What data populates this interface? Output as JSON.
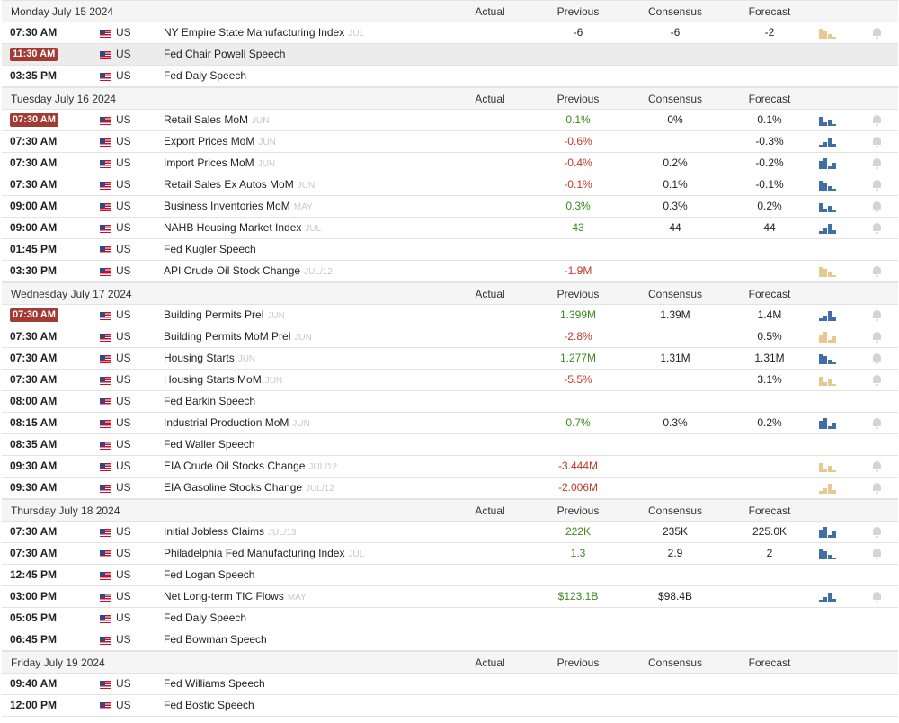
{
  "columns": [
    "Actual",
    "Previous",
    "Consensus",
    "Forecast"
  ],
  "days": [
    {
      "date": "Monday July 15 2024",
      "events": [
        {
          "time": "07:30 AM",
          "country": "US",
          "name": "NY Empire State Manufacturing Index",
          "period": "JUL",
          "previous": "-6",
          "consensus": "-6",
          "forecast": "-2",
          "sparkline": "tan"
        },
        {
          "time": "11:30 AM",
          "highlight": true,
          "shaded": true,
          "country": "US",
          "name": "Fed Chair Powell Speech"
        },
        {
          "time": "03:35 PM",
          "country": "US",
          "name": "Fed Daly Speech"
        }
      ]
    },
    {
      "date": "Tuesday July 16 2024",
      "events": [
        {
          "time": "07:30 AM",
          "highlight": true,
          "country": "US",
          "name": "Retail Sales MoM",
          "period": "JUN",
          "previous": "0.1%",
          "previous_color": "green",
          "consensus": "0%",
          "forecast": "0.1%",
          "sparkline": "blue"
        },
        {
          "time": "07:30 AM",
          "country": "US",
          "name": "Export Prices MoM",
          "period": "JUN",
          "previous": "-0.6%",
          "previous_color": "red",
          "forecast": "-0.3%",
          "sparkline": "blue"
        },
        {
          "time": "07:30 AM",
          "country": "US",
          "name": "Import Prices MoM",
          "period": "JUN",
          "previous": "-0.4%",
          "previous_color": "red",
          "consensus": "0.2%",
          "forecast": "-0.2%",
          "sparkline": "blue"
        },
        {
          "time": "07:30 AM",
          "country": "US",
          "name": "Retail Sales Ex Autos MoM",
          "period": "JUN",
          "previous": "-0.1%",
          "previous_color": "red",
          "consensus": "0.1%",
          "forecast": "-0.1%",
          "sparkline": "blue"
        },
        {
          "time": "09:00 AM",
          "country": "US",
          "name": "Business Inventories MoM",
          "period": "MAY",
          "previous": "0.3%",
          "previous_color": "green",
          "consensus": "0.3%",
          "forecast": "0.2%",
          "sparkline": "blue"
        },
        {
          "time": "09:00 AM",
          "country": "US",
          "name": "NAHB Housing Market Index",
          "period": "JUL",
          "previous": "43",
          "previous_color": "green",
          "consensus": "44",
          "forecast": "44",
          "sparkline": "blue"
        },
        {
          "time": "01:45 PM",
          "country": "US",
          "name": "Fed Kugler Speech"
        },
        {
          "time": "03:30 PM",
          "country": "US",
          "name": "API Crude Oil Stock Change",
          "period": "JUL/12",
          "previous": "-1.9M",
          "previous_color": "red",
          "sparkline": "tan"
        }
      ]
    },
    {
      "date": "Wednesday July 17 2024",
      "events": [
        {
          "time": "07:30 AM",
          "highlight": true,
          "country": "US",
          "name": "Building Permits Prel",
          "period": "JUN",
          "previous": "1.399M",
          "previous_color": "green",
          "consensus": "1.39M",
          "forecast": "1.4M",
          "sparkline": "blue"
        },
        {
          "time": "07:30 AM",
          "country": "US",
          "name": "Building Permits MoM Prel",
          "period": "JUN",
          "previous": "-2.8%",
          "previous_color": "red",
          "forecast": "0.5%",
          "sparkline": "tan"
        },
        {
          "time": "07:30 AM",
          "country": "US",
          "name": "Housing Starts",
          "period": "JUN",
          "previous": "1.277M",
          "previous_color": "green",
          "consensus": "1.31M",
          "forecast": "1.31M",
          "sparkline": "blue"
        },
        {
          "time": "07:30 AM",
          "country": "US",
          "name": "Housing Starts MoM",
          "period": "JUN",
          "previous": "-5.5%",
          "previous_color": "red",
          "forecast": "3.1%",
          "sparkline": "tan"
        },
        {
          "time": "08:00 AM",
          "country": "US",
          "name": "Fed Barkin Speech"
        },
        {
          "time": "08:15 AM",
          "country": "US",
          "name": "Industrial Production MoM",
          "period": "JUN",
          "previous": "0.7%",
          "previous_color": "green",
          "consensus": "0.3%",
          "forecast": "0.2%",
          "sparkline": "blue"
        },
        {
          "time": "08:35 AM",
          "country": "US",
          "name": "Fed Waller Speech"
        },
        {
          "time": "09:30 AM",
          "country": "US",
          "name": "EIA Crude Oil Stocks Change",
          "period": "JUL/12",
          "previous": "-3.444M",
          "previous_color": "red",
          "sparkline": "tan"
        },
        {
          "time": "09:30 AM",
          "country": "US",
          "name": "EIA Gasoline Stocks Change",
          "period": "JUL/12",
          "previous": "-2.006M",
          "previous_color": "red",
          "sparkline": "tan"
        }
      ]
    },
    {
      "date": "Thursday July 18 2024",
      "events": [
        {
          "time": "07:30 AM",
          "country": "US",
          "name": "Initial Jobless Claims",
          "period": "JUL/13",
          "previous": "222K",
          "previous_color": "green",
          "consensus": "235K",
          "forecast": "225.0K",
          "sparkline": "blue"
        },
        {
          "time": "07:30 AM",
          "country": "US",
          "name": "Philadelphia Fed Manufacturing Index",
          "period": "JUL",
          "previous": "1.3",
          "previous_color": "green",
          "consensus": "2.9",
          "forecast": "2",
          "sparkline": "blue"
        },
        {
          "time": "12:45 PM",
          "country": "US",
          "name": "Fed Logan Speech"
        },
        {
          "time": "03:00 PM",
          "country": "US",
          "name": "Net Long-term TIC Flows",
          "period": "MAY",
          "previous": "$123.1B",
          "previous_color": "green",
          "consensus": "$98.4B",
          "sparkline": "blue"
        },
        {
          "time": "05:05 PM",
          "country": "US",
          "name": "Fed Daly Speech"
        },
        {
          "time": "06:45 PM",
          "country": "US",
          "name": "Fed Bowman Speech"
        }
      ]
    },
    {
      "date": "Friday July 19 2024",
      "events": [
        {
          "time": "09:40 AM",
          "country": "US",
          "name": "Fed Williams Speech"
        },
        {
          "time": "12:00 PM",
          "country": "US",
          "name": "Fed Bostic Speech"
        }
      ]
    }
  ]
}
